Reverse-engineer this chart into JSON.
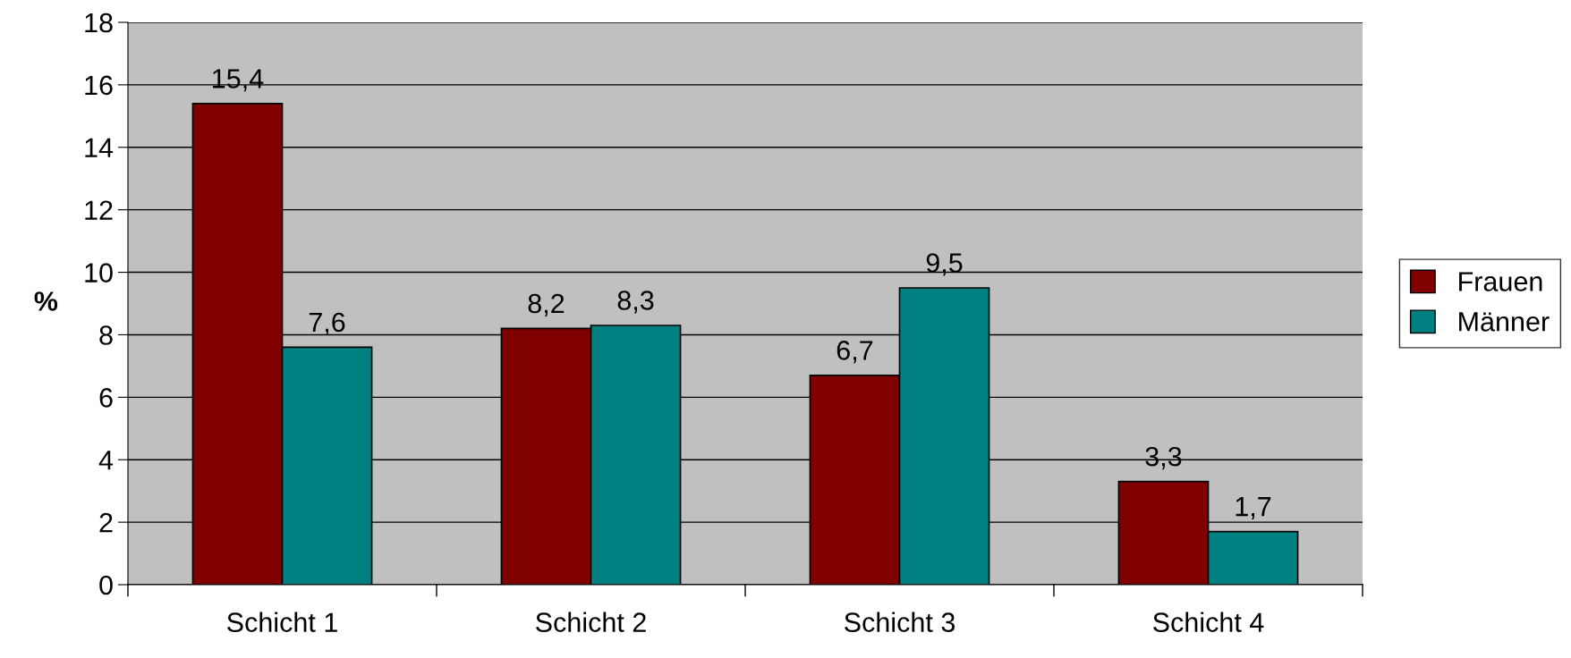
{
  "chart_data": {
    "type": "bar",
    "ylabel": "%",
    "categories": [
      "Schicht 1",
      "Schicht 2",
      "Schicht 3",
      "Schicht 4"
    ],
    "series": [
      {
        "name": "Frauen",
        "color": "#800000",
        "values": [
          15.4,
          8.2,
          6.7,
          3.3
        ],
        "value_labels": [
          "15,4",
          "8,2",
          "6,7",
          "3,3"
        ]
      },
      {
        "name": "Männer",
        "color": "#008080",
        "values": [
          7.6,
          8.3,
          9.5,
          1.7
        ],
        "value_labels": [
          "7,6",
          "8,3",
          "9,5",
          "1,7"
        ]
      }
    ],
    "ylim": [
      0,
      18
    ],
    "yticks": [
      0,
      2,
      4,
      6,
      8,
      10,
      12,
      14,
      16,
      18
    ],
    "grid": "y",
    "legend": "right"
  }
}
